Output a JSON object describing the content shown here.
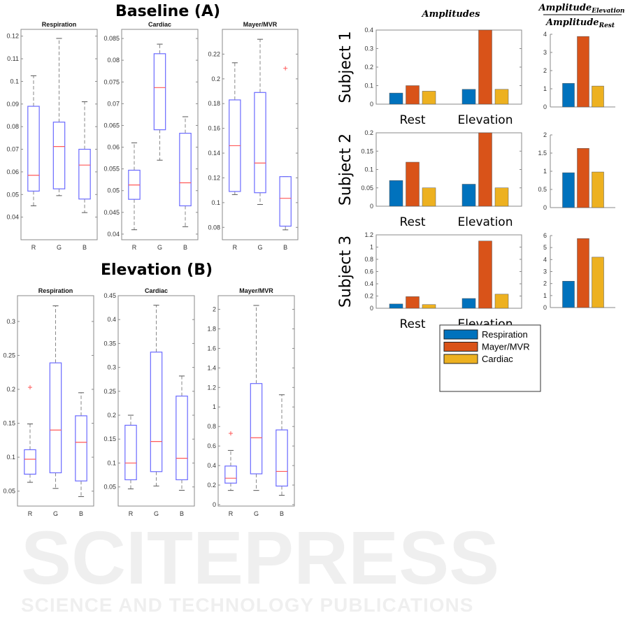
{
  "watermark": {
    "main": "SCITEPRESS",
    "sub": "SCIENCE AND TECHNOLOGY PUBLICATIONS"
  },
  "chart_data": [
    {
      "type": "box",
      "group_title": "Baseline (A)",
      "title": "Respiration",
      "categories": [
        "R",
        "G",
        "B"
      ],
      "ylim": [
        0.03,
        0.123
      ],
      "yticks": [
        0.04,
        0.05,
        0.06,
        0.07,
        0.08,
        0.09,
        0.1,
        0.11,
        0.12
      ],
      "boxes": [
        {
          "whisker_low": 0.045,
          "q1": 0.0515,
          "median": 0.0585,
          "q3": 0.089,
          "whisker_high": 0.1025,
          "outliers": []
        },
        {
          "whisker_low": 0.0495,
          "q1": 0.0525,
          "median": 0.0712,
          "q3": 0.082,
          "whisker_high": 0.119,
          "outliers": []
        },
        {
          "whisker_low": 0.042,
          "q1": 0.048,
          "median": 0.063,
          "q3": 0.07,
          "whisker_high": 0.091,
          "outliers": []
        }
      ]
    },
    {
      "type": "box",
      "title": "Cardiac",
      "categories": [
        "R",
        "G",
        "B"
      ],
      "ylim": [
        0.0387,
        0.0871
      ],
      "yticks": [
        0.04,
        0.045,
        0.05,
        0.055,
        0.06,
        0.065,
        0.07,
        0.075,
        0.08,
        0.085
      ],
      "boxes": [
        {
          "whisker_low": 0.041,
          "q1": 0.048,
          "median": 0.0513,
          "q3": 0.0547,
          "whisker_high": 0.061,
          "outliers": []
        },
        {
          "whisker_low": 0.057,
          "q1": 0.064,
          "median": 0.0737,
          "q3": 0.0815,
          "whisker_high": 0.0837,
          "outliers": []
        },
        {
          "whisker_low": 0.0417,
          "q1": 0.0465,
          "median": 0.0518,
          "q3": 0.0632,
          "whisker_high": 0.067,
          "outliers": []
        }
      ]
    },
    {
      "type": "box",
      "title": "Mayer/MVR",
      "categories": [
        "R",
        "G",
        "B"
      ],
      "ylim": [
        0.07,
        0.24
      ],
      "yticks": [
        0.08,
        0.1,
        0.12,
        0.14,
        0.16,
        0.18,
        0.2,
        0.22
      ],
      "boxes": [
        {
          "whisker_low": 0.1065,
          "q1": 0.109,
          "median": 0.146,
          "q3": 0.183,
          "whisker_high": 0.213,
          "outliers": []
        },
        {
          "whisker_low": 0.0985,
          "q1": 0.108,
          "median": 0.132,
          "q3": 0.189,
          "whisker_high": 0.232,
          "outliers": []
        },
        {
          "whisker_low": 0.078,
          "q1": 0.081,
          "median": 0.1035,
          "q3": 0.121,
          "whisker_high": 0.121,
          "outliers": [
            0.2085
          ]
        }
      ]
    },
    {
      "type": "box",
      "group_title": "Elevation (B)",
      "title": "Respiration",
      "categories": [
        "R",
        "G",
        "B"
      ],
      "ylim": [
        0.028,
        0.338
      ],
      "yticks": [
        0.05,
        0.1,
        0.15,
        0.2,
        0.25,
        0.3
      ],
      "boxes": [
        {
          "whisker_low": 0.063,
          "q1": 0.075,
          "median": 0.097,
          "q3": 0.111,
          "whisker_high": 0.149,
          "outliers": [
            0.203
          ]
        },
        {
          "whisker_low": 0.054,
          "q1": 0.077,
          "median": 0.14,
          "q3": 0.239,
          "whisker_high": 0.323,
          "outliers": []
        },
        {
          "whisker_low": 0.042,
          "q1": 0.065,
          "median": 0.122,
          "q3": 0.161,
          "whisker_high": 0.195,
          "outliers": []
        }
      ]
    },
    {
      "type": "box",
      "title": "Cardiac",
      "categories": [
        "R",
        "G",
        "B"
      ],
      "ylim": [
        0.01,
        0.45
      ],
      "yticks": [
        0.05,
        0.1,
        0.15,
        0.2,
        0.25,
        0.3,
        0.35,
        0.4,
        0.45
      ],
      "boxes": [
        {
          "whisker_low": 0.046,
          "q1": 0.065,
          "median": 0.1,
          "q3": 0.179,
          "whisker_high": 0.2,
          "outliers": []
        },
        {
          "whisker_low": 0.052,
          "q1": 0.082,
          "median": 0.145,
          "q3": 0.332,
          "whisker_high": 0.43,
          "outliers": []
        },
        {
          "whisker_low": 0.043,
          "q1": 0.065,
          "median": 0.11,
          "q3": 0.24,
          "whisker_high": 0.282,
          "outliers": []
        }
      ]
    },
    {
      "type": "box",
      "title": "Mayer/MVR",
      "categories": [
        "R",
        "G",
        "B"
      ],
      "ylim": [
        -0.015,
        2.14
      ],
      "yticks": [
        0,
        0.2,
        0.4,
        0.6,
        0.8,
        1,
        1.2,
        1.4,
        1.6,
        1.8,
        2
      ],
      "boxes": [
        {
          "whisker_low": 0.145,
          "q1": 0.22,
          "median": 0.27,
          "q3": 0.395,
          "whisker_high": 0.555,
          "outliers": [
            0.73
          ]
        },
        {
          "whisker_low": 0.145,
          "q1": 0.315,
          "median": 0.685,
          "q3": 1.24,
          "whisker_high": 2.04,
          "outliers": []
        },
        {
          "whisker_low": 0.095,
          "q1": 0.19,
          "median": 0.34,
          "q3": 0.765,
          "whisker_high": 1.125,
          "outliers": []
        }
      ]
    },
    {
      "type": "bar",
      "subject": "Subject 1",
      "categories": [
        "Rest",
        "Elevation"
      ],
      "ylim": [
        0,
        0.4
      ],
      "yticks": [
        0,
        0.1,
        0.2,
        0.3,
        0.4
      ],
      "series": [
        {
          "name": "Respiration",
          "values": [
            0.06,
            0.08
          ]
        },
        {
          "name": "Mayer/MVR",
          "values": [
            0.1,
            0.4
          ]
        },
        {
          "name": "Cardiac",
          "values": [
            0.07,
            0.08
          ]
        }
      ],
      "ratio": {
        "ylim": [
          0,
          4
        ],
        "yticks": [
          0,
          1,
          2,
          3,
          4
        ],
        "values": [
          1.3,
          3.88,
          1.15
        ]
      }
    },
    {
      "type": "bar",
      "subject": "Subject 2",
      "categories": [
        "Rest",
        "Elevation"
      ],
      "ylim": [
        0,
        0.2
      ],
      "yticks": [
        0,
        0.05,
        0.1,
        0.15,
        0.2
      ],
      "series": [
        {
          "name": "Respiration",
          "values": [
            0.07,
            0.06
          ]
        },
        {
          "name": "Mayer/MVR",
          "values": [
            0.12,
            0.2
          ]
        },
        {
          "name": "Cardiac",
          "values": [
            0.05,
            0.05
          ]
        }
      ],
      "ratio": {
        "ylim": [
          0,
          2
        ],
        "yticks": [
          0,
          0.5,
          1,
          1.5,
          2
        ],
        "values": [
          0.96,
          1.63,
          0.98
        ]
      }
    },
    {
      "type": "bar",
      "subject": "Subject 3",
      "categories": [
        "Rest",
        "Elevation"
      ],
      "ylim": [
        0,
        1.2
      ],
      "yticks": [
        0,
        0.2,
        0.4,
        0.6,
        0.8,
        1,
        1.2
      ],
      "series": [
        {
          "name": "Respiration",
          "values": [
            0.07,
            0.16
          ]
        },
        {
          "name": "Mayer/MVR",
          "values": [
            0.19,
            1.1
          ]
        },
        {
          "name": "Cardiac",
          "values": [
            0.06,
            0.23
          ]
        }
      ],
      "ratio": {
        "ylim": [
          0,
          6
        ],
        "yticks": [
          0,
          1,
          2,
          3,
          4,
          5,
          6
        ],
        "values": [
          2.2,
          5.75,
          4.2
        ]
      }
    }
  ],
  "bar_header": "Amplitudes",
  "ratio_header": {
    "numerator": "Amplitude",
    "numerator_sub": "Elevation",
    "denominator": "Amplitude",
    "denominator_sub": "Rest"
  },
  "legend": [
    {
      "label": "Respiration",
      "color": "#0072BD"
    },
    {
      "label": "Mayer/MVR",
      "color": "#D95319"
    },
    {
      "label": "Cardiac",
      "color": "#EDB120"
    }
  ],
  "colors": {
    "box": "#6a6aff",
    "median": "#ff5a5a",
    "whisker": "#888888",
    "axis": "#8a8a8a"
  }
}
